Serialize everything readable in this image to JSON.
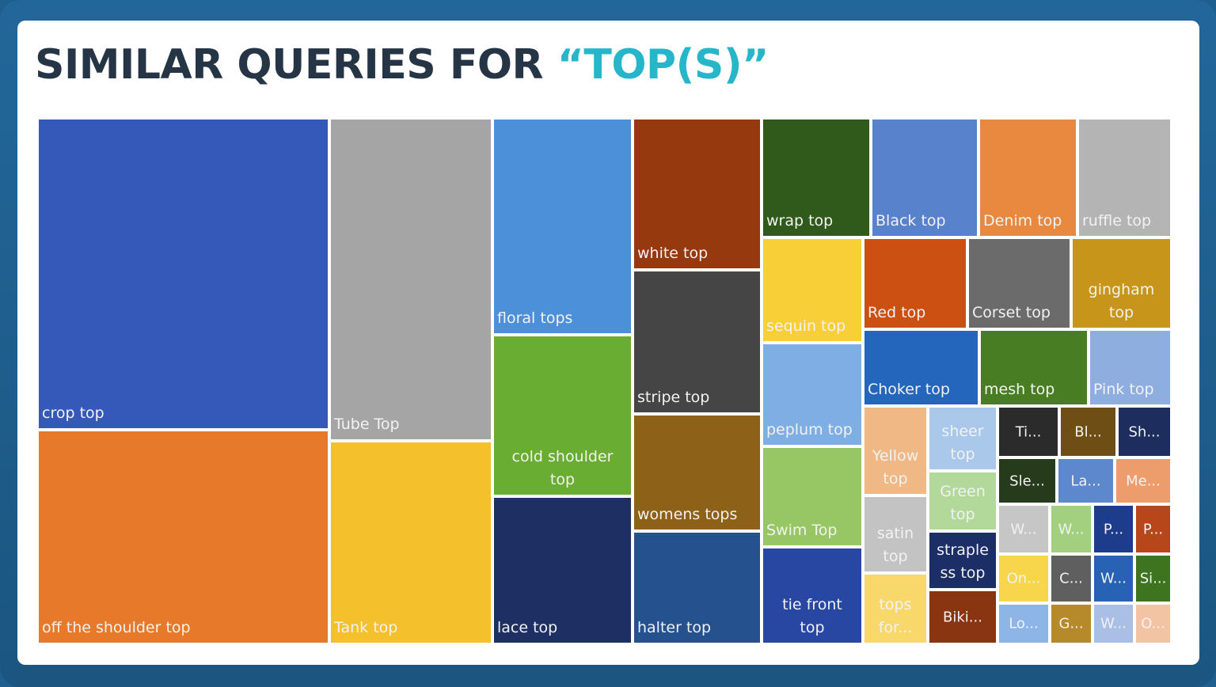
{
  "title": {
    "main": "SIMILAR QUERIES FOR ",
    "accent": "“TOP(S)”"
  },
  "chart_data": {
    "type": "treemap",
    "items": [
      {
        "label": "crop top",
        "color": "#3559b9"
      },
      {
        "label": "off the shoulder top",
        "color": "#e67a2a"
      },
      {
        "label": "Tube Top",
        "color": "#a5a5a5"
      },
      {
        "label": "Tank top",
        "color": "#f4c02b"
      },
      {
        "label": "floral tops",
        "color": "#4c90d9"
      },
      {
        "label": "cold shoulder\ntop",
        "color": "#6aad33"
      },
      {
        "label": "lace top",
        "color": "#1e2f63"
      },
      {
        "label": "white top",
        "color": "#96390f"
      },
      {
        "label": "stripe top",
        "color": "#454545"
      },
      {
        "label": "womens tops",
        "color": "#8e6118"
      },
      {
        "label": "halter top",
        "color": "#25518e"
      },
      {
        "label": "wrap top",
        "color": "#2f5a1c"
      },
      {
        "label": "Black top",
        "color": "#5883cc"
      },
      {
        "label": "Denim top",
        "color": "#e8893f"
      },
      {
        "label": "ruffle top",
        "color": "#b4b4b4"
      },
      {
        "label": "sequin top",
        "color": "#f8cf36"
      },
      {
        "label": "Red top",
        "color": "#cc5012"
      },
      {
        "label": "Corset top",
        "color": "#6b6b6b"
      },
      {
        "label": "gingham\ntop",
        "color": "#c8951b"
      },
      {
        "label": "peplum top",
        "color": "#7eaee3"
      },
      {
        "label": "Choker top",
        "color": "#2466bb"
      },
      {
        "label": "mesh top",
        "color": "#497d23"
      },
      {
        "label": "Pink top",
        "color": "#8eaee0"
      },
      {
        "label": "Swim Top",
        "color": "#97c764"
      },
      {
        "label": "tie front\ntop",
        "color": "#2847a3"
      },
      {
        "label": "Yellow\ntop",
        "color": "#efb884"
      },
      {
        "label": "sheer\ntop",
        "color": "#a9c8ea"
      },
      {
        "label": "Ti...",
        "color": "#2b2b2b"
      },
      {
        "label": "Bl...",
        "color": "#6f4e16"
      },
      {
        "label": "Sh...",
        "color": "#1d2e5e"
      },
      {
        "label": "Green\ntop",
        "color": "#b2d99a"
      },
      {
        "label": "Sle...",
        "color": "#263b1c"
      },
      {
        "label": "La...",
        "color": "#5e88cd"
      },
      {
        "label": "Me...",
        "color": "#ec9d6b"
      },
      {
        "label": "satin\ntop",
        "color": "#c3c3c3"
      },
      {
        "label": "W...",
        "color": "#c6c6c6"
      },
      {
        "label": "W...",
        "color": "#a2d07e"
      },
      {
        "label": "P...",
        "color": "#1d3c8c"
      },
      {
        "label": "P...",
        "color": "#b7461a"
      },
      {
        "label": "straple\nss top",
        "color": "#1b2f66"
      },
      {
        "label": "On...",
        "color": "#f7d64c"
      },
      {
        "label": "C...",
        "color": "#5f5f5f"
      },
      {
        "label": "W...",
        "color": "#2762b4"
      },
      {
        "label": "Si...",
        "color": "#3e7420"
      },
      {
        "label": "tops\nfor...",
        "color": "#f9d86b"
      },
      {
        "label": "Biki...",
        "color": "#893512"
      },
      {
        "label": "Lo...",
        "color": "#8db5e6"
      },
      {
        "label": "G...",
        "color": "#b68a2b"
      },
      {
        "label": "W...",
        "color": "#a9bfe6"
      },
      {
        "label": "O...",
        "color": "#f3c4a3"
      }
    ]
  }
}
